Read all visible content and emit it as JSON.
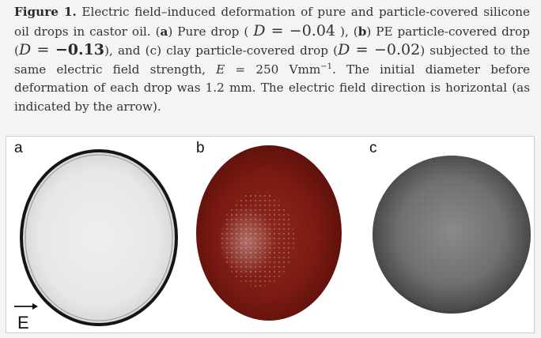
{
  "caption": {
    "figure_label": "Figure 1.",
    "text_1": " Electric field–induced deformation of pure and particle-covered silicone oil drops in castor oil. (",
    "label_a": "a",
    "text_2": ") Pure drop ( ",
    "D_symbol": "D",
    "eq": " = ",
    "value_a": "−0.04",
    "text_3": " ), (",
    "label_b": "b",
    "text_4": ") PE particle-covered drop (",
    "value_b": "−0.13",
    "text_5": "), and (c) clay particle-covered drop (",
    "value_c": "−0.02",
    "text_6": ") subjected to the same electric field strength, ",
    "E_symbol": "E",
    "text_7": " = 250 Vmm",
    "exponent": "−1",
    "text_8": ". The initial diameter before deformation of each drop was 1.2 mm. The electric field direction is horizontal (as indicated by the arrow)."
  },
  "panels": {
    "a": {
      "label": "a"
    },
    "b": {
      "label": "b"
    },
    "c": {
      "label": "c"
    }
  },
  "field_arrow": {
    "label": "E"
  },
  "colors": {
    "pe_drop": "#7e1a12",
    "clay_drop": "#6e6e6e",
    "pure_drop_rim": "#1a1a1a"
  }
}
